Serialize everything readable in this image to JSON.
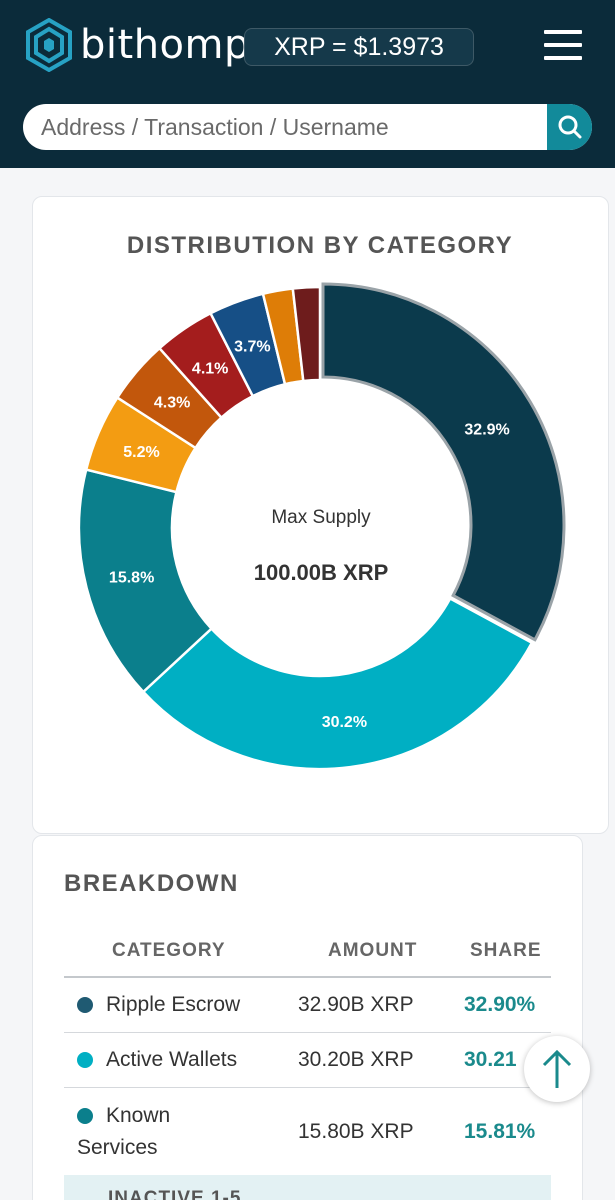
{
  "header": {
    "brand": "bithomp",
    "price": "XRP = $1.3973",
    "menu_icon": "hamburger-menu-icon",
    "logo_icon": "bithomp-logo-icon"
  },
  "search": {
    "placeholder": "Address / Transaction / Username",
    "icon": "search-icon"
  },
  "distribution": {
    "title": "DISTRIBUTION BY CATEGORY",
    "center_label": "Max Supply",
    "center_value": "100.00B XRP"
  },
  "chart_data": {
    "type": "pie",
    "title": "DISTRIBUTION BY CATEGORY",
    "donut": true,
    "slices": [
      {
        "label": "32.9%",
        "value": 32.9,
        "color": "#0b3a4c"
      },
      {
        "label": "30.2%",
        "value": 30.2,
        "color": "#00afc3"
      },
      {
        "label": "15.8%",
        "value": 15.8,
        "color": "#0b7f8c"
      },
      {
        "label": "5.2%",
        "value": 5.2,
        "color": "#f39c12"
      },
      {
        "label": "4.3%",
        "value": 4.3,
        "color": "#c2570c"
      },
      {
        "label": "4.1%",
        "value": 4.1,
        "color": "#a41d1d"
      },
      {
        "label": "3.7%",
        "value": 3.7,
        "color": "#164f86"
      },
      {
        "label": "",
        "value": 2.0,
        "color": "#de7d07"
      },
      {
        "label": "",
        "value": 1.8,
        "color": "#6e1c1c"
      }
    ]
  },
  "breakdown": {
    "title": "BREAKDOWN",
    "columns": [
      "CATEGORY",
      "AMOUNT",
      "SHARE"
    ],
    "rows": [
      {
        "category": "Ripple Escrow",
        "amount": "32.90B XRP",
        "share": "32.90%",
        "color": "#1f5a72"
      },
      {
        "category": "Active Wallets",
        "amount": "30.20B XRP",
        "share": "30.21",
        "color": "#00afc3"
      },
      {
        "category_line1": "Known",
        "category_line2": "Services",
        "amount": "15.80B XRP",
        "share": "15.81%",
        "color": "#0b7f8c"
      }
    ],
    "partial_row": "INACTIVE 1-5"
  },
  "scroll_top_icon": "arrow-up-icon"
}
